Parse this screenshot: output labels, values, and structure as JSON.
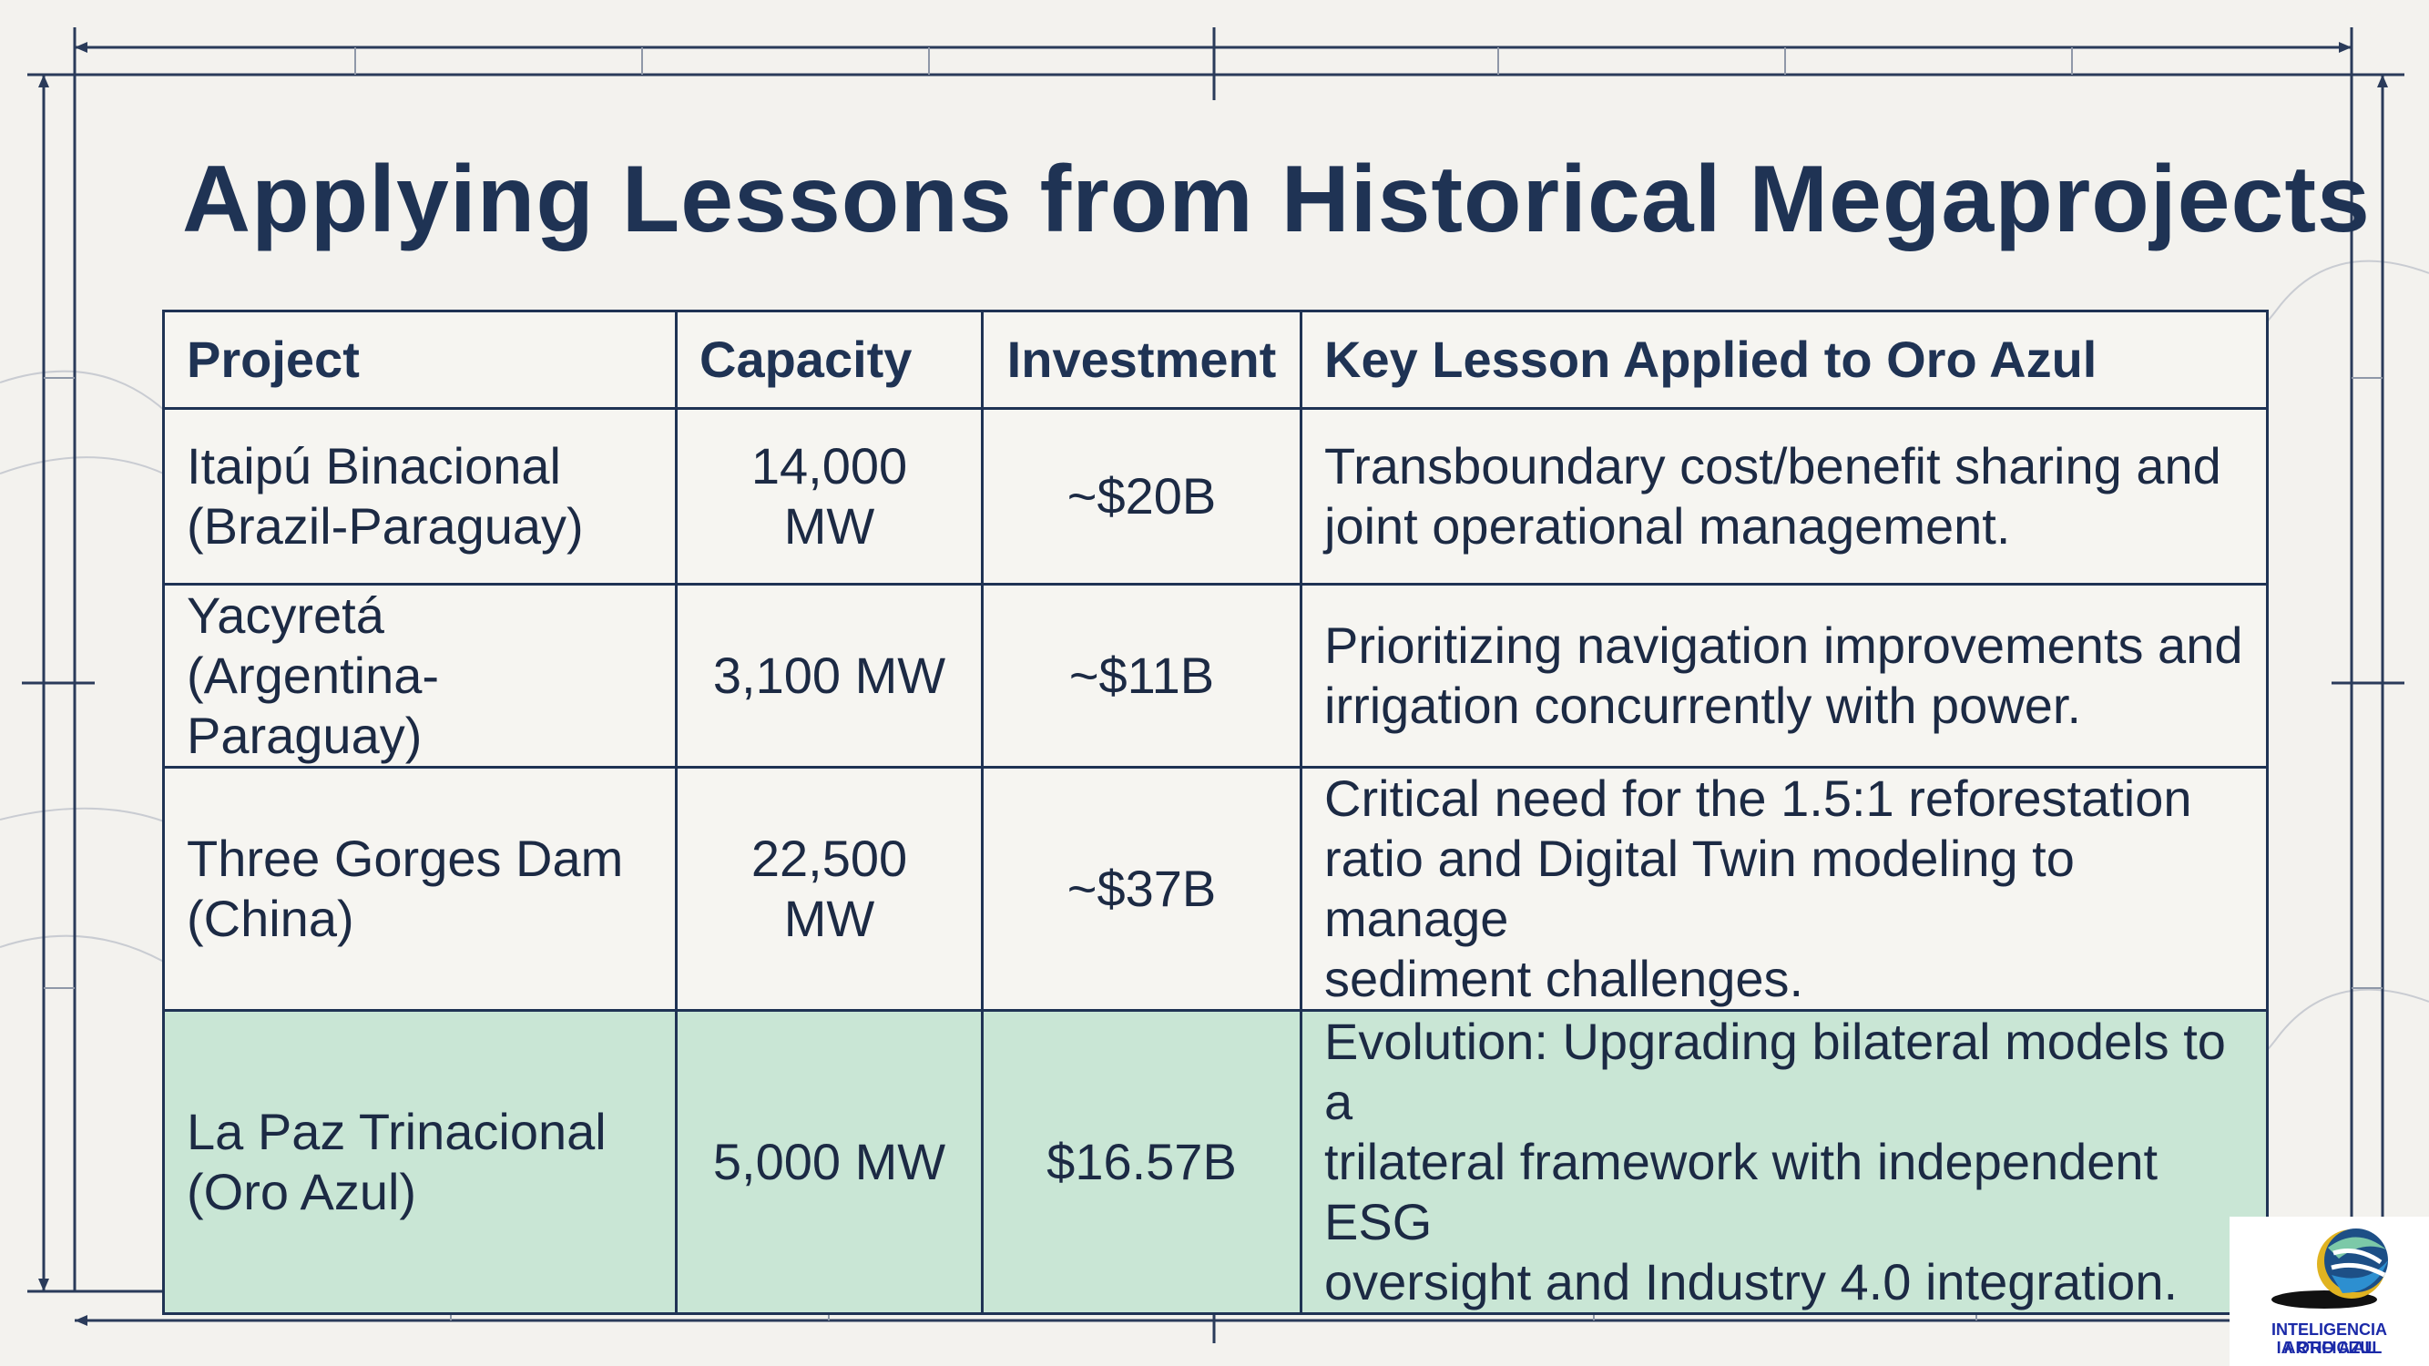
{
  "title": "Applying Lessons from Historical Megaprojects",
  "table": {
    "headers": [
      "Project",
      "Capacity",
      "Investment",
      "Key Lesson Applied to Oro Azul"
    ],
    "rows": [
      {
        "project": [
          "Itaipú Binacional",
          "(Brazil-Paraguay)"
        ],
        "capacity": "14,000 MW",
        "investment": "~$20B",
        "lesson": [
          "Transboundary cost/benefit sharing and",
          "joint operational management."
        ]
      },
      {
        "project": [
          "Yacyretá",
          "(Argentina-Paraguay)"
        ],
        "capacity": "3,100 MW",
        "investment": "~$11B",
        "lesson": [
          "Prioritizing navigation improvements and",
          "irrigation concurrently with power."
        ]
      },
      {
        "project": [
          "Three Gorges Dam",
          "(China)"
        ],
        "capacity": "22,500 MW",
        "investment": "~$37B",
        "lesson": [
          "Critical need for the 1.5:1 reforestation",
          "ratio and Digital Twin modeling to manage",
          "sediment challenges."
        ]
      },
      {
        "project": [
          "La Paz Trinacional",
          "(Oro Azul)"
        ],
        "capacity": "5,000 MW",
        "investment": "$16.57B",
        "lesson": [
          "Evolution: Upgrading bilateral models to a",
          "trilateral framework with independent ESG",
          "oversight and Industry 4.0 integration."
        ]
      }
    ]
  },
  "colors": {
    "frame": "#1f3354",
    "background": "#f3f2ee",
    "highlight_row": "#c9e6d5",
    "logo_text": "#1b2aa8"
  },
  "logo": {
    "line1": "INTELIGENCIA ARTIFICIAL",
    "line2": "IA ORO AZUL",
    "icon": "globe-swoosh-icon"
  }
}
